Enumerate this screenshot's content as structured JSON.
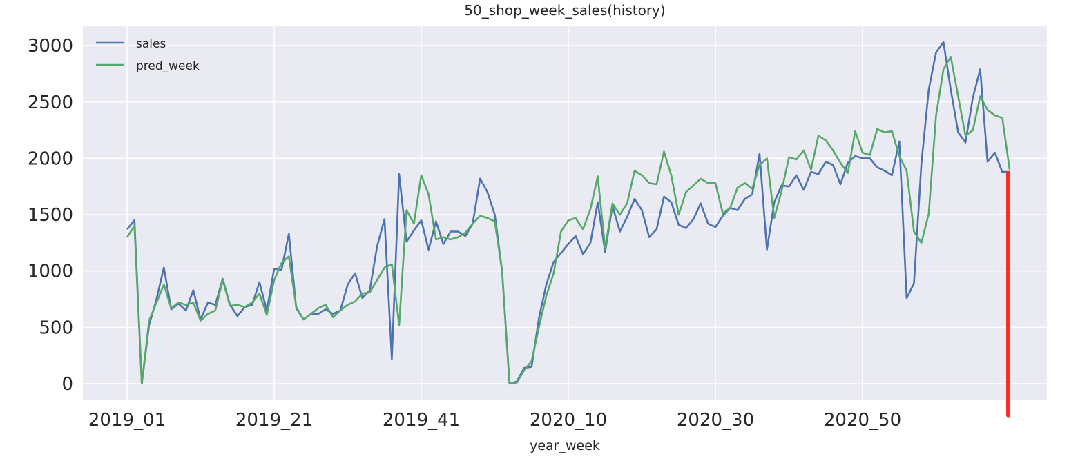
{
  "chart_data": {
    "type": "line",
    "title": "50_shop_week_sales(history)",
    "xlabel": "year_week",
    "ylabel": "",
    "x_tick_labels": [
      "2019_01",
      "2019_21",
      "2019_41",
      "2020_10",
      "2020_30",
      "2020_50"
    ],
    "y_ticks": [
      0,
      500,
      1000,
      1500,
      2000,
      2500,
      3000
    ],
    "ylim": [
      -150,
      3200
    ],
    "grid": true,
    "legend": "top-left",
    "n_weeks": 121,
    "series": [
      {
        "name": "sales",
        "color": "#4c72b0",
        "values": [
          1370,
          1450,
          0,
          520,
          750,
          1030,
          660,
          710,
          650,
          830,
          570,
          720,
          700,
          930,
          700,
          600,
          680,
          700,
          900,
          650,
          1020,
          1010,
          1330,
          670,
          570,
          620,
          620,
          660,
          620,
          650,
          880,
          980,
          760,
          830,
          1220,
          1460,
          220,
          1860,
          1260,
          1360,
          1450,
          1190,
          1440,
          1240,
          1350,
          1350,
          1310,
          1420,
          1820,
          1700,
          1500,
          1000,
          0,
          20,
          140,
          150,
          580,
          880,
          1080,
          1160,
          1240,
          1310,
          1150,
          1250,
          1610,
          1170,
          1580,
          1350,
          1480,
          1640,
          1540,
          1300,
          1370,
          1660,
          1610,
          1410,
          1380,
          1460,
          1600,
          1420,
          1390,
          1490,
          1560,
          1540,
          1640,
          1680,
          2040,
          1190,
          1610,
          1760,
          1750,
          1850,
          1720,
          1880,
          1860,
          1970,
          1940,
          1770,
          1960,
          2020,
          2000,
          2000,
          1920,
          1890,
          1850,
          2150,
          760,
          890,
          1950,
          2610,
          2940,
          3030,
          2610,
          2230,
          2140,
          2540,
          2790,
          1970,
          2050,
          1880,
          1880
        ]
      },
      {
        "name": "pred_week",
        "color": "#55a868",
        "values": [
          1300,
          1400,
          0,
          560,
          720,
          880,
          670,
          720,
          700,
          720,
          560,
          620,
          650,
          920,
          690,
          700,
          680,
          720,
          800,
          610,
          920,
          1070,
          1130,
          680,
          570,
          620,
          670,
          700,
          590,
          650,
          700,
          730,
          800,
          810,
          920,
          1030,
          1060,
          520,
          1540,
          1420,
          1850,
          1680,
          1280,
          1300,
          1280,
          1300,
          1340,
          1420,
          1490,
          1470,
          1440,
          1000,
          0,
          10,
          120,
          200,
          500,
          780,
          980,
          1350,
          1450,
          1470,
          1370,
          1550,
          1840,
          1200,
          1600,
          1500,
          1600,
          1890,
          1850,
          1780,
          1770,
          2060,
          1850,
          1500,
          1700,
          1760,
          1820,
          1780,
          1780,
          1510,
          1560,
          1740,
          1780,
          1730,
          1940,
          2000,
          1470,
          1710,
          2010,
          1990,
          2070,
          1900,
          2200,
          2160,
          2070,
          1960,
          1870,
          2240,
          2050,
          2030,
          2260,
          2230,
          2240,
          2020,
          1890,
          1350,
          1250,
          1510,
          2380,
          2790,
          2900,
          2550,
          2200,
          2250,
          2550,
          2430,
          2380,
          2360,
          1900
        ]
      }
    ],
    "marker": {
      "color": "#ff2d1f",
      "week_index": 120,
      "from": 1870,
      "to": -280
    }
  }
}
